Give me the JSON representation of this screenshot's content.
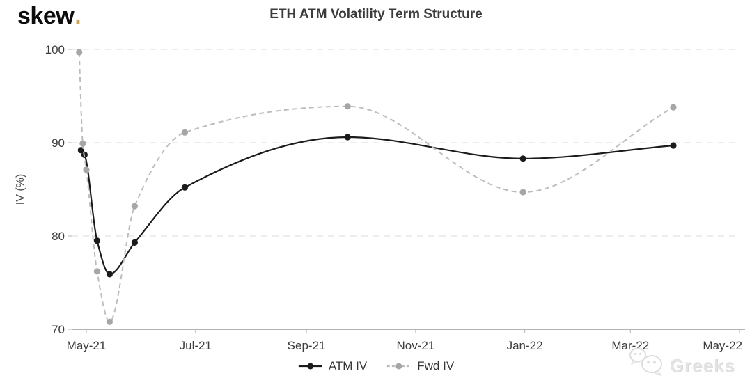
{
  "brand": {
    "name": "skew",
    "dot": ".",
    "dot_color": "#cda356"
  },
  "watermark": {
    "icon": "wechat-icon",
    "label": "Greeks"
  },
  "chart_data": {
    "type": "line",
    "title": "ETH ATM Volatility Term Structure",
    "xlabel": "",
    "ylabel": "IV (%)",
    "ylim": [
      70,
      100
    ],
    "yticks": [
      100,
      90,
      80,
      70
    ],
    "xticks": [
      {
        "label": "May-21",
        "date": "2021-05-01"
      },
      {
        "label": "Jul-21",
        "date": "2021-07-01"
      },
      {
        "label": "Sep-21",
        "date": "2021-09-01"
      },
      {
        "label": "Nov-21",
        "date": "2021-11-01"
      },
      {
        "label": "Jan-22",
        "date": "2022-01-01"
      },
      {
        "label": "Mar-22",
        "date": "2022-03-01"
      },
      {
        "label": "May-22",
        "date": "2022-05-01"
      }
    ],
    "grid": "horizontal-dashed",
    "legend_position": "bottom-center",
    "series": [
      {
        "name": "ATM IV",
        "style": "solid",
        "line_color": "#1b1b1b",
        "marker_color": "#1b1b1b",
        "points": [
          {
            "date": "2021-04-28",
            "iv": 89.2
          },
          {
            "date": "2021-04-30",
            "iv": 88.7
          },
          {
            "date": "2021-05-07",
            "iv": 79.5
          },
          {
            "date": "2021-05-14",
            "iv": 75.9
          },
          {
            "date": "2021-05-28",
            "iv": 79.3
          },
          {
            "date": "2021-06-25",
            "iv": 85.2
          },
          {
            "date": "2021-09-24",
            "iv": 90.6
          },
          {
            "date": "2021-12-31",
            "iv": 88.3
          },
          {
            "date": "2022-03-25",
            "iv": 89.7
          }
        ]
      },
      {
        "name": "Fwd IV",
        "style": "dashed",
        "line_color": "#bcbcbc",
        "marker_color": "#a6a6a6",
        "points": [
          {
            "date": "2021-04-27",
            "iv": 99.7
          },
          {
            "date": "2021-04-29",
            "iv": 89.9
          },
          {
            "date": "2021-05-01",
            "iv": 87.1
          },
          {
            "date": "2021-05-07",
            "iv": 76.2
          },
          {
            "date": "2021-05-14",
            "iv": 70.8
          },
          {
            "date": "2021-05-28",
            "iv": 83.2
          },
          {
            "date": "2021-06-25",
            "iv": 91.1
          },
          {
            "date": "2021-09-24",
            "iv": 93.9
          },
          {
            "date": "2021-12-31",
            "iv": 84.7
          },
          {
            "date": "2022-03-25",
            "iv": 93.8
          }
        ]
      }
    ]
  }
}
